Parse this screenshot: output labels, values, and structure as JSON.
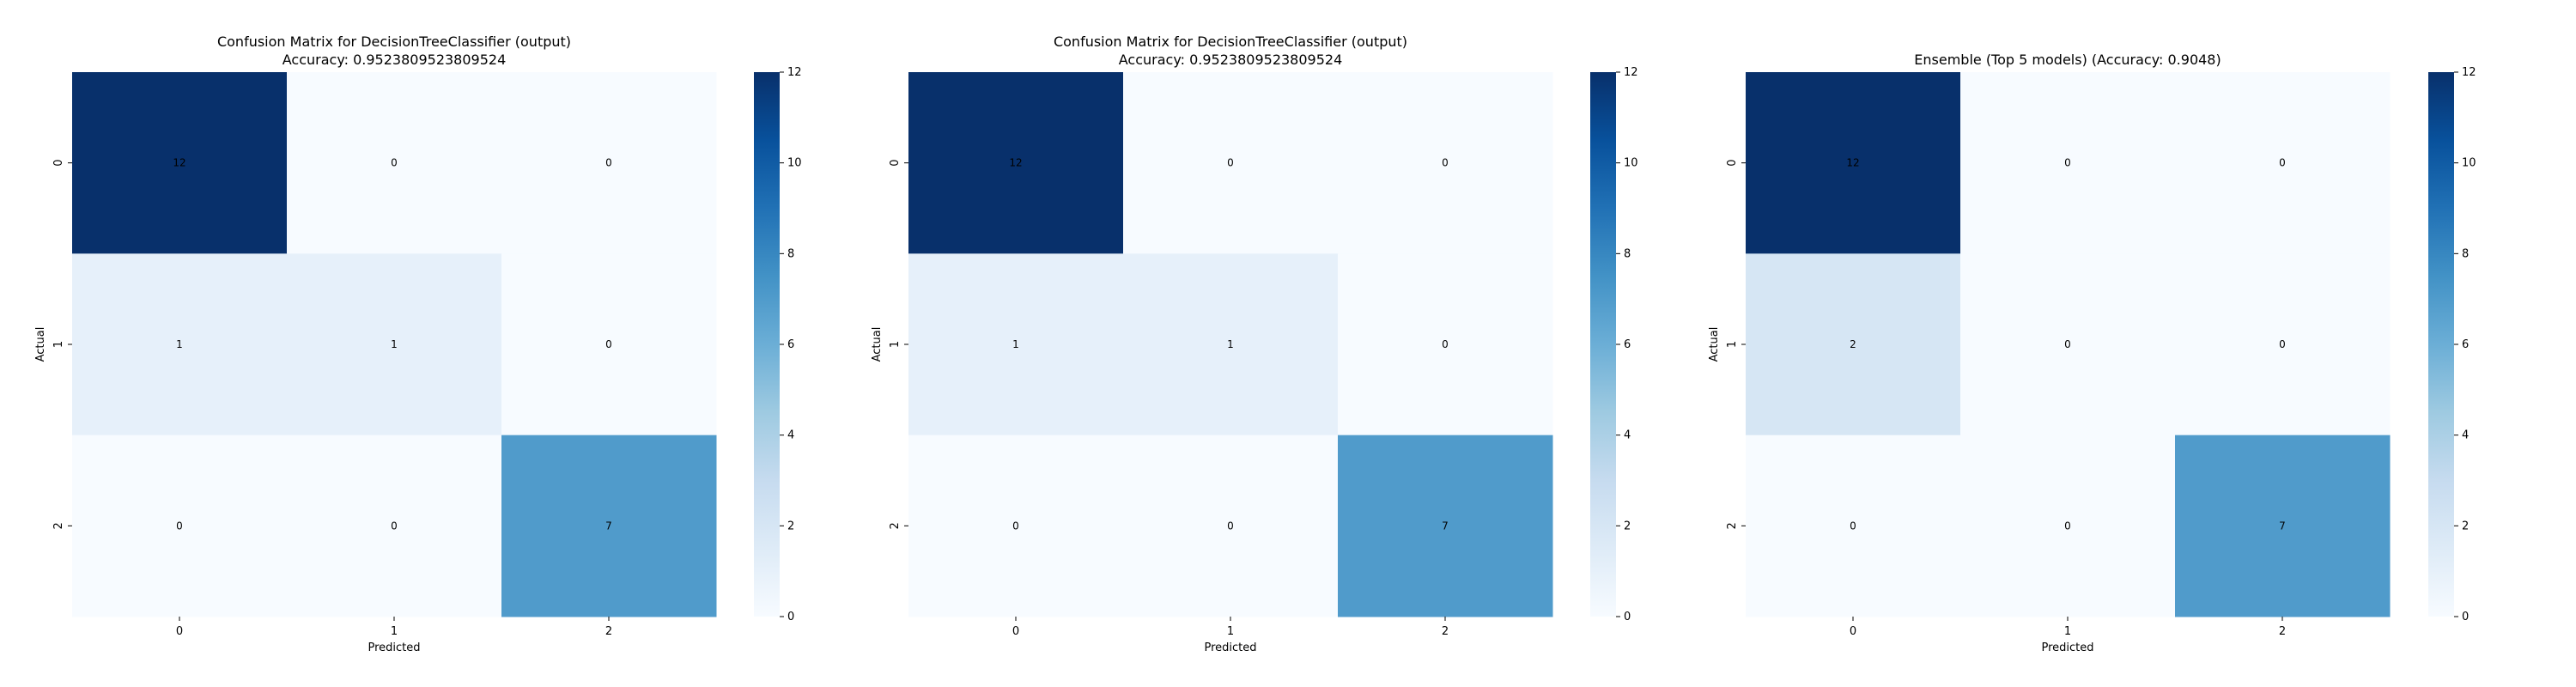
{
  "chart_data": [
    {
      "type": "heatmap",
      "title": "Confusion Matrix for DecisionTreeClassifier (output)",
      "subtitle": "Accuracy: 0.9523809523809524",
      "xlabel": "Predicted",
      "ylabel": "Actual",
      "x_categories": [
        "0",
        "1",
        "2"
      ],
      "y_categories": [
        "0",
        "1",
        "2"
      ],
      "values": [
        [
          12,
          0,
          0
        ],
        [
          1,
          1,
          0
        ],
        [
          0,
          0,
          7
        ]
      ],
      "colormap": "Blues",
      "colorbar": {
        "range": [
          0,
          12
        ],
        "ticks": [
          0,
          2,
          4,
          6,
          8,
          10,
          12
        ]
      }
    },
    {
      "type": "heatmap",
      "title": "Confusion Matrix for DecisionTreeClassifier (output)",
      "subtitle": "Accuracy: 0.9523809523809524",
      "xlabel": "Predicted",
      "ylabel": "Actual",
      "x_categories": [
        "0",
        "1",
        "2"
      ],
      "y_categories": [
        "0",
        "1",
        "2"
      ],
      "values": [
        [
          12,
          0,
          0
        ],
        [
          1,
          1,
          0
        ],
        [
          0,
          0,
          7
        ]
      ],
      "colormap": "Blues",
      "colorbar": {
        "range": [
          0,
          12
        ],
        "ticks": [
          0,
          2,
          4,
          6,
          8,
          10,
          12
        ]
      }
    },
    {
      "type": "heatmap",
      "title": "Ensemble (Top 5 models) (Accuracy: 0.9048)",
      "subtitle": "",
      "xlabel": "Predicted",
      "ylabel": "Actual",
      "x_categories": [
        "0",
        "1",
        "2"
      ],
      "y_categories": [
        "0",
        "1",
        "2"
      ],
      "values": [
        [
          12,
          0,
          0
        ],
        [
          2,
          0,
          0
        ],
        [
          0,
          0,
          7
        ]
      ],
      "colormap": "Blues",
      "colorbar": {
        "range": [
          0,
          12
        ],
        "ticks": [
          0,
          2,
          4,
          6,
          8,
          10,
          12
        ]
      }
    }
  ]
}
